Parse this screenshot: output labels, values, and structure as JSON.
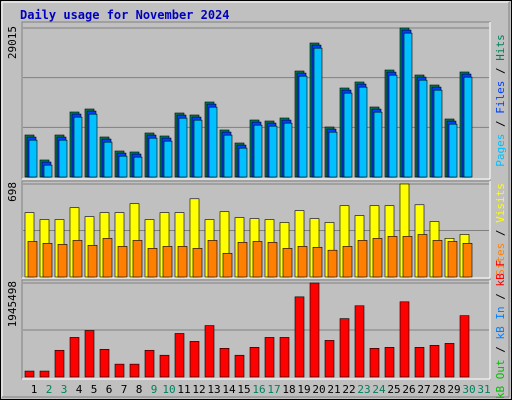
{
  "chart_data": [
    {
      "type": "bar",
      "title": "Daily usage for November 2024",
      "ylim": [
        0,
        29015
      ],
      "yticks": [
        29015
      ],
      "grid_divisions": 3,
      "series": [
        {
          "name": "Hits",
          "color": "#00805c",
          "values": [
            8177,
            3310,
            8177,
            12656,
            13240,
            7788,
            5062,
            4868,
            8567,
            7983,
            12461,
            12071,
            14603,
            9151,
            6620,
            11098,
            10903,
            11487,
            20638,
            26090,
            9735,
            17328,
            18497,
            13629,
            20833,
            29015,
            19859,
            17912,
            11293,
            20444,
            null
          ]
        },
        {
          "name": "Files",
          "color": "#0040ff",
          "values": [
            7777,
            2910,
            7777,
            12256,
            12840,
            7388,
            4662,
            4468,
            8167,
            7583,
            12061,
            11671,
            14203,
            8751,
            6220,
            10698,
            10503,
            11087,
            20238,
            25690,
            9335,
            16928,
            18097,
            13229,
            20433,
            28615,
            19459,
            17512,
            10893,
            20044,
            null
          ]
        },
        {
          "name": "Pages",
          "color": "#00c0ff",
          "values": [
            7177,
            2310,
            7177,
            11656,
            12240,
            6788,
            4062,
            3868,
            7567,
            6983,
            11461,
            11071,
            13603,
            8151,
            5620,
            10098,
            9903,
            10487,
            19638,
            25090,
            8735,
            16328,
            17497,
            12629,
            19833,
            28015,
            18859,
            16912,
            10293,
            19444,
            null
          ]
        }
      ]
    },
    {
      "type": "bar",
      "ylim": [
        0,
        698
      ],
      "yticks": [
        698
      ],
      "grid_divisions": 2,
      "series": [
        {
          "name": "Visits",
          "color": "#ffff00",
          "values": [
            483,
            431,
            431,
            520,
            453,
            483,
            483,
            550,
            431,
            483,
            483,
            587,
            431,
            490,
            446,
            438,
            431,
            409,
            498,
            438,
            409,
            535,
            461,
            535,
            535,
            698,
            542,
            416,
            290,
            319,
            null
          ]
        },
        {
          "name": "Sites",
          "color": "#ff8000",
          "values": [
            267,
            253,
            245,
            275,
            238,
            290,
            230,
            275,
            215,
            230,
            230,
            215,
            275,
            178,
            260,
            267,
            260,
            215,
            230,
            223,
            201,
            230,
            275,
            290,
            305,
            305,
            319,
            275,
            267,
            253,
            null
          ]
        }
      ]
    },
    {
      "type": "bar",
      "ylim": [
        0,
        1945498
      ],
      "yticks": [
        1945498
      ],
      "grid_divisions": 2,
      "categories": [
        "1",
        "2",
        "3",
        "4",
        "5",
        "6",
        "7",
        "8",
        "9",
        "10",
        "11",
        "12",
        "13",
        "14",
        "15",
        "16",
        "17",
        "18",
        "19",
        "20",
        "21",
        "22",
        "23",
        "24",
        "25",
        "26",
        "27",
        "28",
        "29",
        "30",
        "31"
      ],
      "category_colors": [
        "#000000",
        "#00805c",
        "#00805c",
        "#000000",
        "#000000",
        "#000000",
        "#000000",
        "#000000",
        "#00805c",
        "#00805c",
        "#000000",
        "#000000",
        "#000000",
        "#000000",
        "#000000",
        "#00805c",
        "#00805c",
        "#000000",
        "#000000",
        "#000000",
        "#000000",
        "#000000",
        "#00805c",
        "#00805c",
        "#000000",
        "#000000",
        "#000000",
        "#000000",
        "#000000",
        "#00805c",
        "#00805c"
      ],
      "series": [
        {
          "name": "kB F",
          "color": "#ff0000",
          "values": [
            122874,
            122874,
            552933,
            819160,
            962513,
            573412,
            266227,
            266227,
            552933,
            450538,
            901076,
            737244,
            1064908,
            593891,
            450538,
            614370,
            819160,
            819160,
            1658799,
            1945498,
            757723,
            1208261,
            1474488,
            593891,
            614370,
            1556404,
            614370,
            655328,
            696286,
            1269698,
            null
          ]
        },
        {
          "name": "kB In",
          "color": "#0080ff",
          "values": [
            0,
            0,
            0,
            0,
            0,
            0,
            0,
            0,
            0,
            0,
            0,
            0,
            0,
            0,
            0,
            0,
            0,
            0,
            0,
            0,
            0,
            0,
            0,
            0,
            0,
            0,
            0,
            0,
            0,
            0,
            null
          ]
        },
        {
          "name": "kB Out",
          "color": "#00c000",
          "values": [
            0,
            0,
            0,
            0,
            0,
            0,
            0,
            0,
            0,
            0,
            0,
            0,
            0,
            0,
            0,
            0,
            0,
            0,
            0,
            0,
            0,
            0,
            0,
            0,
            0,
            0,
            0,
            0,
            0,
            0,
            null
          ]
        }
      ]
    }
  ]
}
